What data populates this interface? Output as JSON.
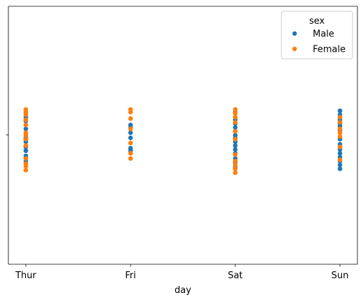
{
  "chart_data": {
    "type": "scatter",
    "title": "",
    "xlabel": "day",
    "ylabel": "",
    "categories": [
      "Thur",
      "Fri",
      "Sat",
      "Sun"
    ],
    "ylim": [
      -1,
      1
    ],
    "grid": false,
    "legend": {
      "title": "sex",
      "placement": "top-right",
      "entries": [
        "Male",
        "Female"
      ]
    },
    "colors": {
      "Male": "#1f77b4",
      "Female": "#ff7f0e"
    },
    "series": [
      {
        "name": "Male",
        "points": [
          [
            "Thur",
            0.18
          ],
          [
            "Thur",
            0.14
          ],
          [
            "Thur",
            0.11
          ],
          [
            "Thur",
            0.05
          ],
          [
            "Thur",
            -0.02
          ],
          [
            "Thur",
            -0.05
          ],
          [
            "Thur",
            -0.09
          ],
          [
            "Thur",
            -0.12
          ],
          [
            "Thur",
            -0.16
          ],
          [
            "Thur",
            -0.2
          ],
          [
            "Fri",
            0.08
          ],
          [
            "Fri",
            0.06
          ],
          [
            "Fri",
            0.02
          ],
          [
            "Fri",
            -0.02
          ],
          [
            "Fri",
            -0.1
          ],
          [
            "Fri",
            -0.12
          ],
          [
            "Sat",
            0.18
          ],
          [
            "Sat",
            0.12
          ],
          [
            "Sat",
            0.09
          ],
          [
            "Sat",
            0.06
          ],
          [
            "Sat",
            0.03
          ],
          [
            "Sat",
            0.0
          ],
          [
            "Sat",
            -0.02
          ],
          [
            "Sat",
            -0.05
          ],
          [
            "Sat",
            -0.08
          ],
          [
            "Sat",
            -0.11
          ],
          [
            "Sat",
            -0.14
          ],
          [
            "Sat",
            -0.18
          ],
          [
            "Sat",
            -0.21
          ],
          [
            "Sat",
            -0.25
          ],
          [
            "Sun",
            0.19
          ],
          [
            "Sun",
            0.16
          ],
          [
            "Sun",
            0.12
          ],
          [
            "Sun",
            0.09
          ],
          [
            "Sun",
            0.07
          ],
          [
            "Sun",
            0.04
          ],
          [
            "Sun",
            -0.03
          ],
          [
            "Sun",
            -0.07
          ],
          [
            "Sun",
            -0.11
          ],
          [
            "Sun",
            -0.14
          ],
          [
            "Sun",
            -0.17
          ],
          [
            "Sun",
            -0.2
          ],
          [
            "Sun",
            -0.23
          ],
          [
            "Sun",
            -0.26
          ]
        ]
      },
      {
        "name": "Female",
        "points": [
          [
            "Thur",
            0.2
          ],
          [
            "Thur",
            0.18
          ],
          [
            "Thur",
            0.16
          ],
          [
            "Thur",
            0.12
          ],
          [
            "Thur",
            0.08
          ],
          [
            "Thur",
            0.02
          ],
          [
            "Thur",
            0.0
          ],
          [
            "Thur",
            -0.03
          ],
          [
            "Thur",
            -0.08
          ],
          [
            "Thur",
            -0.18
          ],
          [
            "Thur",
            -0.22
          ],
          [
            "Thur",
            -0.24
          ],
          [
            "Thur",
            -0.27
          ],
          [
            "Fri",
            0.2
          ],
          [
            "Fri",
            0.18
          ],
          [
            "Fri",
            0.13
          ],
          [
            "Fri",
            0.05
          ],
          [
            "Fri",
            -0.06
          ],
          [
            "Fri",
            -0.14
          ],
          [
            "Fri",
            -0.18
          ],
          [
            "Sat",
            0.2
          ],
          [
            "Sat",
            0.17
          ],
          [
            "Sat",
            0.14
          ],
          [
            "Sat",
            0.1
          ],
          [
            "Sat",
            0.03
          ],
          [
            "Sat",
            -0.03
          ],
          [
            "Sat",
            -0.15
          ],
          [
            "Sat",
            -0.2
          ],
          [
            "Sat",
            -0.23
          ],
          [
            "Sat",
            -0.26
          ],
          [
            "Sat",
            -0.29
          ],
          [
            "Sun",
            0.14
          ],
          [
            "Sun",
            0.1
          ],
          [
            "Sun",
            0.05
          ],
          [
            "Sun",
            0.02
          ],
          [
            "Sun",
            -0.01
          ],
          [
            "Sun",
            -0.09
          ],
          [
            "Sun",
            -0.19
          ]
        ]
      }
    ]
  }
}
